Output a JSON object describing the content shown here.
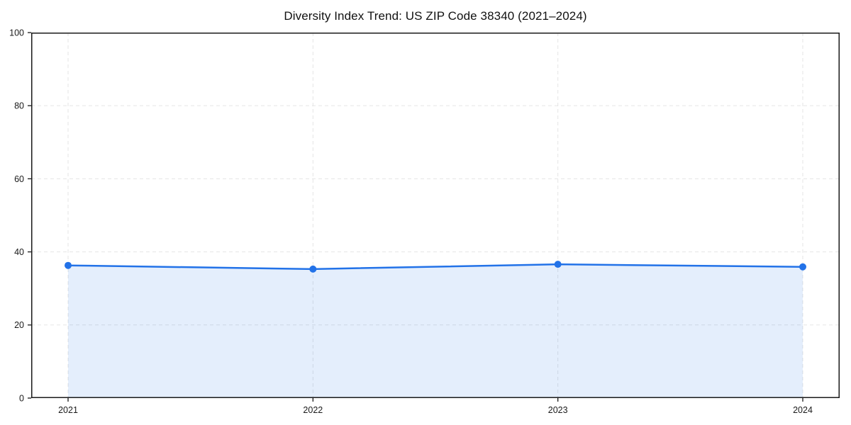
{
  "page": {
    "background": "#ffffff"
  },
  "chart_data": {
    "type": "line",
    "title": "Diversity Index Trend: US ZIP Code 38340 (2021–2024)",
    "x": [
      "2021",
      "2022",
      "2023",
      "2024"
    ],
    "series": [
      {
        "name": "Diversity Index",
        "values": [
          36.3,
          35.3,
          36.6,
          35.9
        ]
      }
    ],
    "xlabel": "",
    "ylabel": "",
    "ylim": [
      0,
      100
    ],
    "yticks": [
      0,
      20,
      40,
      60,
      80,
      100
    ],
    "grid": true,
    "grid_style": "dashed",
    "legend": "none",
    "marker": "circle",
    "colors": {
      "line": "#2272e8",
      "marker": "#2272e8",
      "fill": "#2272e8",
      "fill_opacity": 0.12,
      "grid": "#e5e5e5",
      "spine": "#1a1a1a",
      "tick_text": "#1a1a1a",
      "title_text": "#111111"
    }
  }
}
